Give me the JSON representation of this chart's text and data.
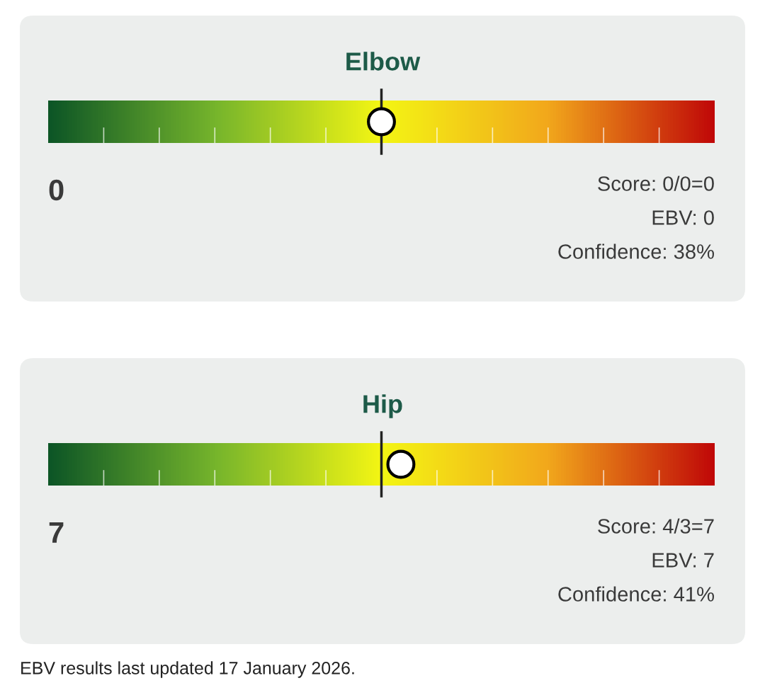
{
  "chart_data": [
    {
      "type": "other",
      "title": "Elbow",
      "values": [
        0
      ],
      "data_labels": true,
      "annotations": [
        "Score: 0/0=0",
        "EBV: 0",
        "Confidence: 38%"
      ]
    },
    {
      "type": "other",
      "title": "Hip",
      "values": [
        7
      ],
      "data_labels": true,
      "annotations": [
        "Score: 4/3=7",
        "EBV: 7",
        "Confidence: 41%",
        "EBV results last updated 17 January 2026."
      ]
    }
  ]
}
